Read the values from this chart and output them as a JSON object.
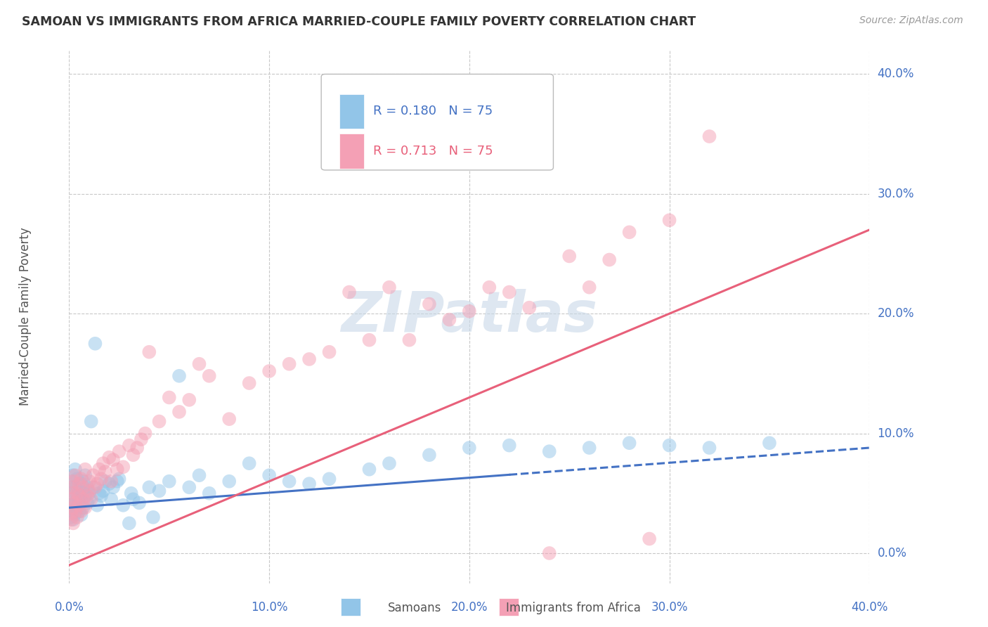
{
  "title": "SAMOAN VS IMMIGRANTS FROM AFRICA MARRIED-COUPLE FAMILY POVERTY CORRELATION CHART",
  "source": "Source: ZipAtlas.com",
  "ylabel_label": "Married-Couple Family Poverty",
  "legend_samoans_R": "0.180",
  "legend_samoans_N": "75",
  "legend_africa_R": "0.713",
  "legend_africa_N": "75",
  "legend_label1": "Samoans",
  "legend_label2": "Immigrants from Africa",
  "color_samoan": "#92C5E8",
  "color_africa": "#F4A0B5",
  "color_samoan_line": "#4472C4",
  "color_africa_line": "#E8607A",
  "color_axis_text": "#4472C4",
  "color_title": "#333333",
  "color_grid": "#C8C8C8",
  "color_watermark": "#C8D8E8",
  "samoans_x": [
    0.001,
    0.001,
    0.001,
    0.001,
    0.001,
    0.002,
    0.002,
    0.002,
    0.002,
    0.002,
    0.003,
    0.003,
    0.003,
    0.003,
    0.004,
    0.004,
    0.004,
    0.005,
    0.005,
    0.005,
    0.006,
    0.006,
    0.006,
    0.007,
    0.007,
    0.007,
    0.008,
    0.008,
    0.009,
    0.009,
    0.01,
    0.01,
    0.011,
    0.012,
    0.013,
    0.014,
    0.015,
    0.016,
    0.017,
    0.018,
    0.02,
    0.021,
    0.022,
    0.024,
    0.025,
    0.027,
    0.03,
    0.031,
    0.032,
    0.035,
    0.04,
    0.042,
    0.045,
    0.05,
    0.055,
    0.06,
    0.065,
    0.07,
    0.08,
    0.09,
    0.1,
    0.11,
    0.12,
    0.13,
    0.15,
    0.16,
    0.18,
    0.2,
    0.22,
    0.24,
    0.26,
    0.28,
    0.3,
    0.32,
    0.35
  ],
  "samoans_y": [
    0.04,
    0.035,
    0.055,
    0.03,
    0.06,
    0.045,
    0.038,
    0.05,
    0.065,
    0.028,
    0.042,
    0.07,
    0.033,
    0.055,
    0.048,
    0.038,
    0.062,
    0.043,
    0.052,
    0.035,
    0.058,
    0.044,
    0.032,
    0.06,
    0.05,
    0.038,
    0.048,
    0.065,
    0.042,
    0.055,
    0.05,
    0.045,
    0.11,
    0.055,
    0.175,
    0.04,
    0.05,
    0.048,
    0.052,
    0.06,
    0.058,
    0.045,
    0.055,
    0.06,
    0.062,
    0.04,
    0.025,
    0.05,
    0.045,
    0.042,
    0.055,
    0.03,
    0.052,
    0.06,
    0.148,
    0.055,
    0.065,
    0.05,
    0.06,
    0.075,
    0.065,
    0.06,
    0.058,
    0.062,
    0.07,
    0.075,
    0.082,
    0.088,
    0.09,
    0.085,
    0.088,
    0.092,
    0.09,
    0.088,
    0.092
  ],
  "africa_x": [
    0.001,
    0.001,
    0.001,
    0.001,
    0.002,
    0.002,
    0.002,
    0.002,
    0.003,
    0.003,
    0.003,
    0.004,
    0.004,
    0.005,
    0.005,
    0.005,
    0.006,
    0.006,
    0.007,
    0.007,
    0.008,
    0.008,
    0.009,
    0.01,
    0.01,
    0.011,
    0.012,
    0.013,
    0.014,
    0.015,
    0.016,
    0.017,
    0.018,
    0.02,
    0.021,
    0.022,
    0.024,
    0.025,
    0.027,
    0.03,
    0.032,
    0.034,
    0.036,
    0.038,
    0.04,
    0.045,
    0.05,
    0.055,
    0.06,
    0.065,
    0.07,
    0.08,
    0.09,
    0.1,
    0.11,
    0.12,
    0.13,
    0.14,
    0.15,
    0.16,
    0.17,
    0.18,
    0.19,
    0.2,
    0.21,
    0.22,
    0.23,
    0.24,
    0.25,
    0.26,
    0.27,
    0.28,
    0.29,
    0.3,
    0.32
  ],
  "africa_y": [
    0.028,
    0.045,
    0.033,
    0.055,
    0.038,
    0.05,
    0.025,
    0.06,
    0.042,
    0.035,
    0.065,
    0.05,
    0.03,
    0.048,
    0.04,
    0.058,
    0.035,
    0.062,
    0.045,
    0.055,
    0.038,
    0.07,
    0.048,
    0.052,
    0.06,
    0.045,
    0.065,
    0.055,
    0.058,
    0.07,
    0.062,
    0.075,
    0.068,
    0.08,
    0.06,
    0.078,
    0.07,
    0.085,
    0.072,
    0.09,
    0.082,
    0.088,
    0.095,
    0.1,
    0.168,
    0.11,
    0.13,
    0.118,
    0.128,
    0.158,
    0.148,
    0.112,
    0.142,
    0.152,
    0.158,
    0.162,
    0.168,
    0.218,
    0.178,
    0.222,
    0.178,
    0.208,
    0.195,
    0.202,
    0.222,
    0.218,
    0.205,
    0.0,
    0.248,
    0.222,
    0.245,
    0.268,
    0.012,
    0.278,
    0.348
  ],
  "xlim": [
    0.0,
    0.4
  ],
  "ylim": [
    -0.025,
    0.42
  ],
  "figsize": [
    14.06,
    8.92
  ],
  "dpi": 100,
  "ytick_vals": [
    0.0,
    0.1,
    0.2,
    0.3,
    0.4
  ],
  "xtick_vals": [
    0.0,
    0.1,
    0.2,
    0.3,
    0.4
  ],
  "samoan_line_split": 0.22
}
